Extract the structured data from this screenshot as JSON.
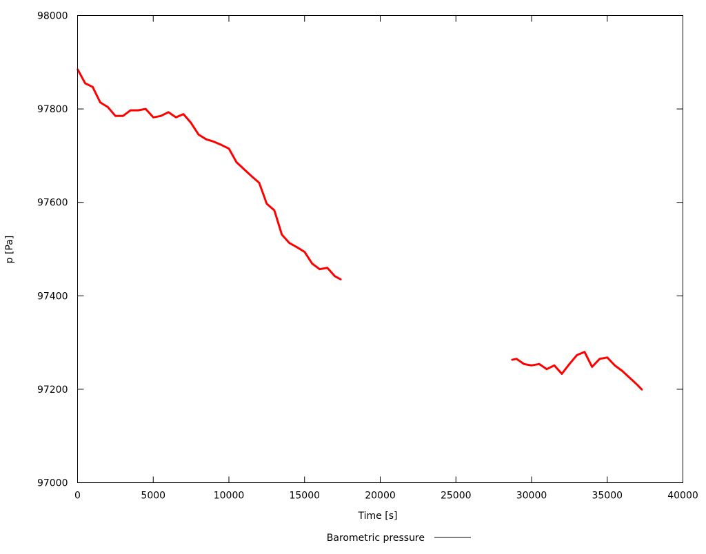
{
  "chart_data": {
    "type": "line",
    "title": "",
    "xlabel": "Time [s]",
    "ylabel": "p [Pa]",
    "xlim": [
      0,
      40000
    ],
    "ylim": [
      97000,
      98000
    ],
    "xticks": [
      "0",
      "5000",
      "10000",
      "15000",
      "20000",
      "25000",
      "30000",
      "35000",
      "40000"
    ],
    "yticks": [
      "97000",
      "97200",
      "97400",
      "97600",
      "97800",
      "98000"
    ],
    "grid": false,
    "legend_position": "bottom-center",
    "series": [
      {
        "name": "Barometric pressure",
        "color": "#ff0000",
        "segments": [
          [
            [
              0,
              97885
            ],
            [
              500,
              97855
            ],
            [
              1000,
              97847
            ],
            [
              1500,
              97814
            ],
            [
              2000,
              97804
            ],
            [
              2500,
              97785
            ],
            [
              3000,
              97785
            ],
            [
              3500,
              97797
            ],
            [
              4000,
              97797
            ],
            [
              4500,
              97800
            ],
            [
              5000,
              97782
            ],
            [
              5500,
              97785
            ],
            [
              6000,
              97793
            ],
            [
              6500,
              97782
            ],
            [
              7000,
              97789
            ],
            [
              7500,
              97770
            ],
            [
              8000,
              97745
            ],
            [
              8500,
              97735
            ],
            [
              9000,
              97730
            ],
            [
              9500,
              97723
            ],
            [
              10000,
              97715
            ],
            [
              10500,
              97686
            ],
            [
              11000,
              97671
            ],
            [
              11500,
              97656
            ],
            [
              12000,
              97642
            ],
            [
              12500,
              97597
            ],
            [
              13000,
              97583
            ],
            [
              13500,
              97531
            ],
            [
              14000,
              97513
            ],
            [
              14500,
              97504
            ],
            [
              15000,
              97494
            ],
            [
              15500,
              97469
            ],
            [
              16000,
              97457
            ],
            [
              16500,
              97460
            ],
            [
              17000,
              97442
            ],
            [
              17400,
              97435
            ]
          ],
          [
            [
              28700,
              97263
            ],
            [
              29000,
              97265
            ],
            [
              29500,
              97254
            ],
            [
              30000,
              97251
            ],
            [
              30500,
              97254
            ],
            [
              31000,
              97243
            ],
            [
              31500,
              97251
            ],
            [
              32000,
              97233
            ],
            [
              32500,
              97254
            ],
            [
              33000,
              97273
            ],
            [
              33500,
              97280
            ],
            [
              34000,
              97248
            ],
            [
              34500,
              97265
            ],
            [
              35000,
              97268
            ],
            [
              35500,
              97251
            ],
            [
              36000,
              97239
            ],
            [
              36500,
              97224
            ],
            [
              37000,
              97209
            ],
            [
              37300,
              97199
            ]
          ]
        ]
      }
    ],
    "legend_line_color": "#000000"
  }
}
